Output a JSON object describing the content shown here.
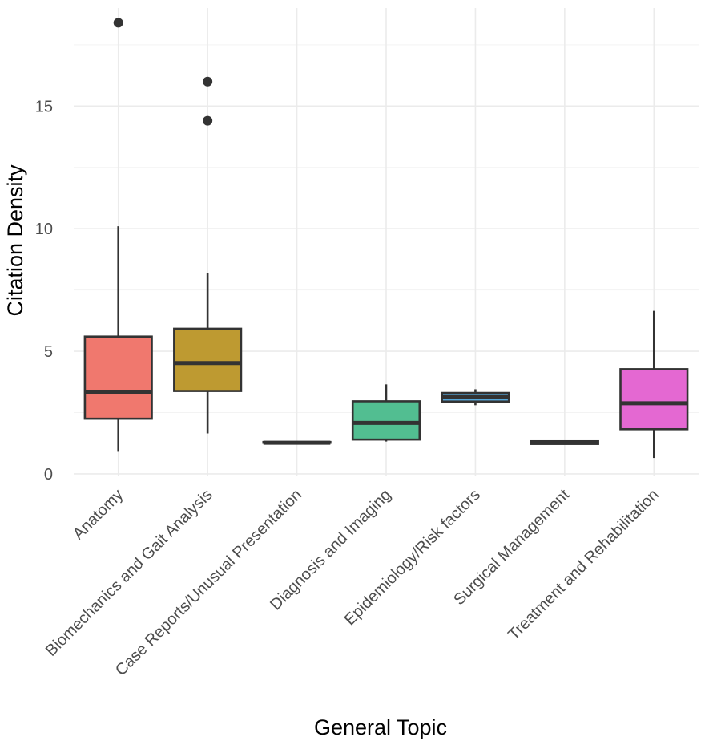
{
  "chart_data": {
    "type": "boxplot",
    "xlabel": "General Topic",
    "ylabel": "Citation Density",
    "ylim": [
      -0.1,
      19.0
    ],
    "yticks": [
      0,
      5,
      10,
      15
    ],
    "grid": true,
    "legend": "none",
    "categories": [
      "Anatomy",
      "Biomechanics and Gait Analysis",
      "Case Reports/Unusual Presentation",
      "Diagnosis and Imaging",
      "Epidemiology/Risk factors",
      "Surgical Management",
      "Treatment and Rehabilitation"
    ],
    "colors": [
      "#F0786E",
      "#BE9A31",
      "#363636",
      "#52BE91",
      "#55A7DA",
      "#363636",
      "#E468D2"
    ],
    "boxes": [
      {
        "min": 0.9,
        "q1": 2.25,
        "median": 3.35,
        "q3": 5.6,
        "max": 10.1,
        "outliers": [
          18.4
        ]
      },
      {
        "min": 1.65,
        "q1": 3.38,
        "median": 4.52,
        "q3": 5.92,
        "max": 8.2,
        "outliers": [
          16.0,
          14.4
        ]
      },
      {
        "min": 1.27,
        "q1": 1.27,
        "median": 1.27,
        "q3": 1.3,
        "max": 1.3,
        "outliers": []
      },
      {
        "min": 1.32,
        "q1": 1.4,
        "median": 2.08,
        "q3": 2.96,
        "max": 3.65,
        "outliers": []
      },
      {
        "min": 2.8,
        "q1": 2.95,
        "median": 3.12,
        "q3": 3.3,
        "max": 3.45,
        "outliers": []
      },
      {
        "min": 1.2,
        "q1": 1.22,
        "median": 1.28,
        "q3": 1.33,
        "max": 1.35,
        "outliers": []
      },
      {
        "min": 0.65,
        "q1": 1.82,
        "median": 2.88,
        "q3": 4.27,
        "max": 6.65,
        "outliers": []
      }
    ]
  }
}
